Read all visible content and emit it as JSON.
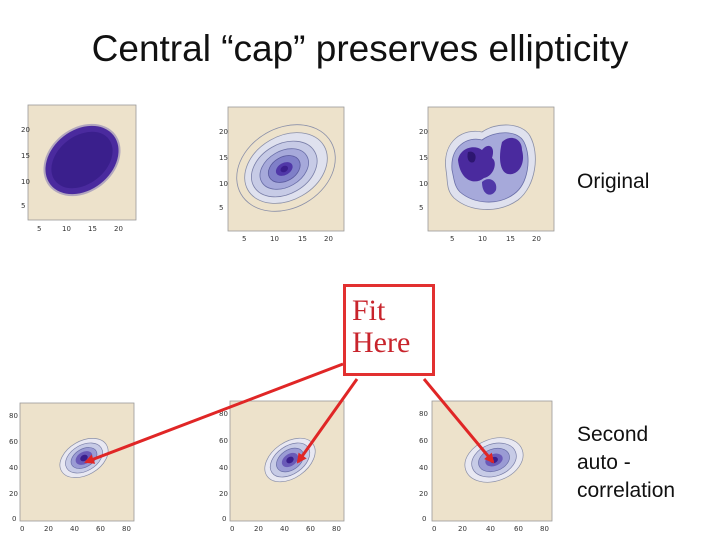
{
  "slide": {
    "title": "Central “cap” preserves ellipticity",
    "original_label": "Original",
    "second_label_lines": [
      "Second",
      "auto -",
      "correlation"
    ],
    "fit_lines": [
      "Fit",
      "Here"
    ]
  },
  "colors": {
    "plot_bg": "#ede2cb",
    "contour_dark": "#3a1f8c",
    "arrow": "#e02626"
  },
  "top_plots": [
    {
      "y_ticks": [
        "20",
        "15",
        "10",
        "5"
      ],
      "x_ticks": [
        "5",
        "10",
        "15",
        "20"
      ]
    },
    {
      "y_ticks": [
        "20",
        "15",
        "10",
        "5"
      ],
      "x_ticks": [
        "5",
        "10",
        "15",
        "20"
      ]
    },
    {
      "y_ticks": [
        "20",
        "15",
        "10",
        "5"
      ],
      "x_ticks": [
        "5",
        "10",
        "15",
        "20"
      ]
    }
  ],
  "bottom_plots": [
    {
      "y_ticks": [
        "80",
        "60",
        "40",
        "20",
        "0"
      ],
      "x_ticks": [
        "0",
        "20",
        "40",
        "60",
        "80"
      ]
    },
    {
      "y_ticks": [
        "80",
        "60",
        "40",
        "20",
        "0"
      ],
      "x_ticks": [
        "0",
        "20",
        "40",
        "60",
        "80"
      ]
    },
    {
      "y_ticks": [
        "80",
        "60",
        "40",
        "20",
        "0"
      ],
      "x_ticks": [
        "0",
        "20",
        "40",
        "60",
        "80"
      ]
    }
  ]
}
